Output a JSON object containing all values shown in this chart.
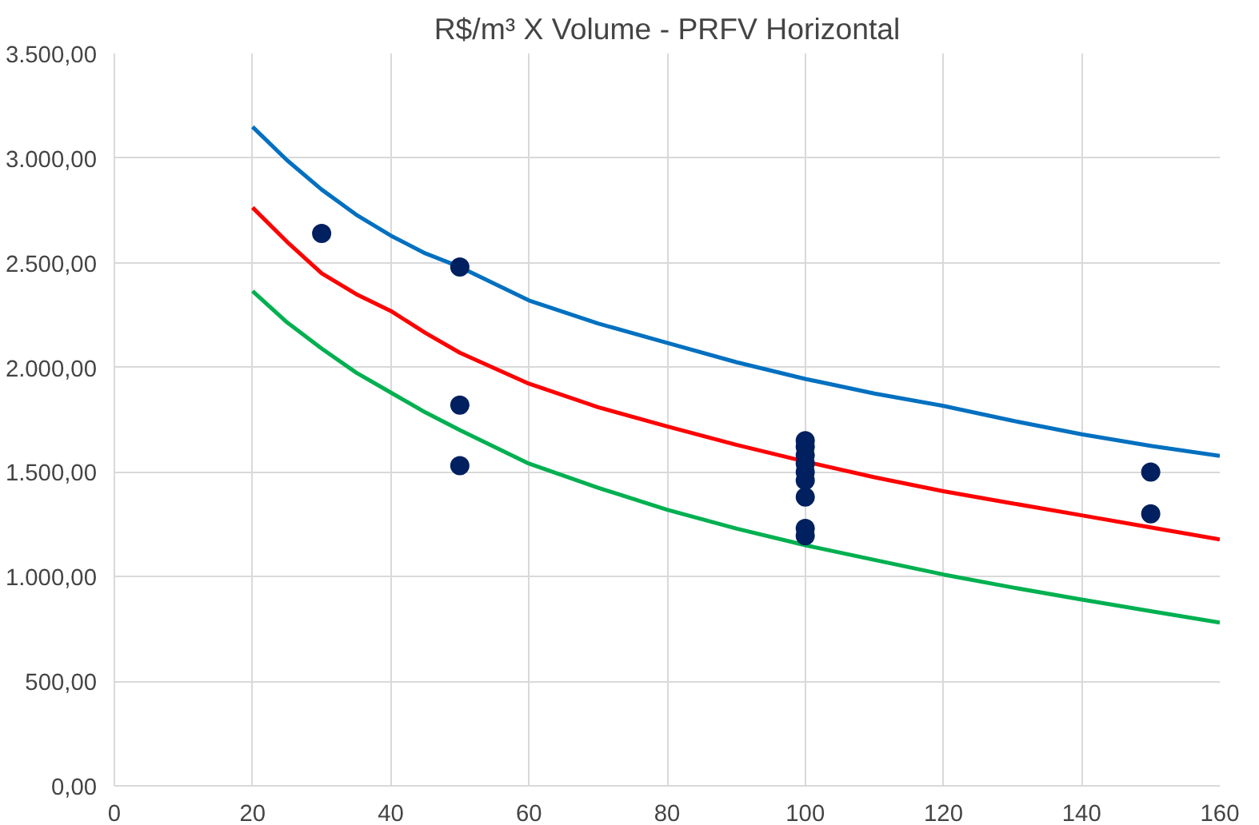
{
  "chart_data": {
    "type": "scatter",
    "title": "R$/m³ X Volume - PRFV Horizontal",
    "xlim": [
      0,
      160
    ],
    "xticks": [
      0,
      20,
      40,
      60,
      80,
      100,
      120,
      140,
      160
    ],
    "ylim": [
      0,
      3500
    ],
    "yticks": [
      {
        "value": 0,
        "label": "0,00"
      },
      {
        "value": 500,
        "label": "500,00"
      },
      {
        "value": 1000,
        "label": "1.000,00"
      },
      {
        "value": 1500,
        "label": "1.500,00"
      },
      {
        "value": 2000,
        "label": "2.000,00"
      },
      {
        "value": 2500,
        "label": "2.500,00"
      },
      {
        "value": 3000,
        "label": "3.000,00"
      },
      {
        "value": 3500,
        "label": "3.500,00"
      }
    ],
    "grid": true,
    "series": [
      {
        "type": "line",
        "color": "#0070c0",
        "marker": "none",
        "x": [
          20,
          25,
          30,
          35,
          40,
          45,
          50,
          60,
          70,
          80,
          90,
          100,
          110,
          120,
          130,
          140,
          150,
          160
        ],
        "values": [
          3150,
          2990,
          2850,
          2730,
          2630,
          2545,
          2480,
          2320,
          2210,
          2117,
          2025,
          1945,
          1875,
          1816,
          1745,
          1680,
          1625,
          1577
        ]
      },
      {
        "type": "line",
        "color": "#ff0000",
        "marker": "none",
        "x": [
          20,
          25,
          30,
          35,
          40,
          45,
          50,
          60,
          70,
          80,
          90,
          100,
          110,
          120,
          130,
          140,
          150,
          160
        ],
        "values": [
          2764,
          2600,
          2450,
          2350,
          2270,
          2165,
          2070,
          1922,
          1810,
          1718,
          1630,
          1550,
          1475,
          1408,
          1350,
          1293,
          1235,
          1178
        ]
      },
      {
        "type": "line",
        "color": "#00b050",
        "marker": "none",
        "x": [
          20,
          25,
          30,
          35,
          40,
          45,
          50,
          60,
          70,
          80,
          90,
          100,
          110,
          120,
          130,
          140,
          150,
          160
        ],
        "values": [
          2365,
          2215,
          2090,
          1975,
          1880,
          1785,
          1700,
          1540,
          1425,
          1320,
          1230,
          1150,
          1080,
          1010,
          948,
          890,
          835,
          780
        ]
      },
      {
        "color": "#002060",
        "marker": "circle",
        "x": [
          30,
          50,
          50,
          50,
          100,
          100,
          100,
          100,
          100,
          100,
          100,
          100,
          100,
          150,
          150
        ],
        "values": [
          2640,
          2480,
          1820,
          1530,
          1650,
          1620,
          1580,
          1540,
          1500,
          1460,
          1380,
          1230,
          1195,
          1500,
          1300
        ]
      }
    ]
  }
}
